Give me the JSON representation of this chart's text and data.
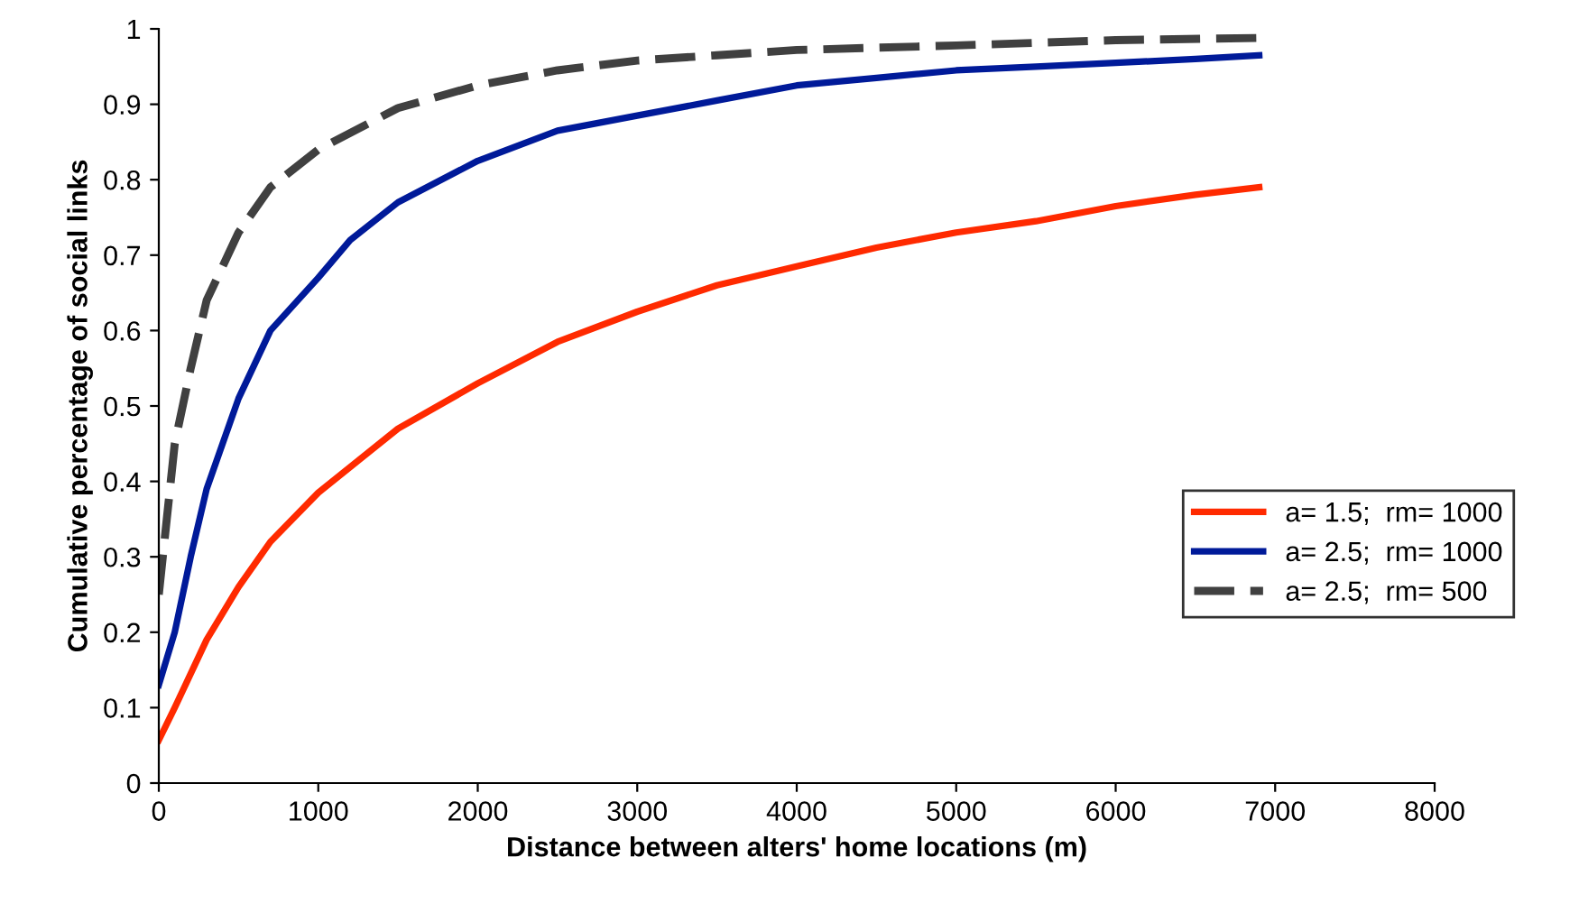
{
  "chart_data": {
    "type": "line",
    "xlabel": "Distance between alters' home locations (m)",
    "ylabel": "Cumulative percentage of social links",
    "xlim": [
      0,
      8000
    ],
    "xticks": [
      0,
      1000,
      2000,
      3000,
      4000,
      5000,
      6000,
      7000,
      8000
    ],
    "ylim": [
      0,
      1
    ],
    "yticks": [
      0,
      0.1,
      0.2,
      0.3,
      0.4,
      0.5,
      0.6,
      0.7,
      0.8,
      0.9,
      1
    ],
    "grid": false,
    "legend": "right",
    "marker": "none",
    "series": [
      {
        "name": "a= 1.5;  rm= 1000",
        "color": "#ff2a00",
        "line_style": "solid",
        "x": [
          0,
          100,
          300,
          500,
          700,
          1000,
          1500,
          2000,
          2500,
          3000,
          3500,
          4000,
          4500,
          5000,
          5500,
          6000,
          6500,
          6900
        ],
        "values": [
          0.057,
          0.1,
          0.19,
          0.26,
          0.32,
          0.385,
          0.47,
          0.53,
          0.585,
          0.625,
          0.66,
          0.685,
          0.71,
          0.73,
          0.745,
          0.765,
          0.78,
          0.79
        ]
      },
      {
        "name": "a= 2.5;  rm= 1000",
        "color": "#001a99",
        "line_style": "solid",
        "x": [
          0,
          100,
          200,
          300,
          500,
          700,
          1000,
          1200,
          1500,
          2000,
          2500,
          3000,
          3500,
          4000,
          4500,
          5000,
          5500,
          6000,
          6500,
          6900
        ],
        "values": [
          0.13,
          0.2,
          0.3,
          0.39,
          0.51,
          0.6,
          0.67,
          0.72,
          0.77,
          0.825,
          0.865,
          0.885,
          0.905,
          0.925,
          0.935,
          0.945,
          0.95,
          0.955,
          0.96,
          0.965
        ]
      },
      {
        "name": "a= 2.5;  rm= 500",
        "color": "#404040",
        "line_style": "dashed",
        "x": [
          0,
          50,
          100,
          200,
          300,
          500,
          700,
          1000,
          1500,
          2000,
          2500,
          3000,
          3500,
          4000,
          5000,
          6000,
          6900
        ],
        "values": [
          0.25,
          0.35,
          0.45,
          0.55,
          0.64,
          0.73,
          0.79,
          0.84,
          0.895,
          0.925,
          0.945,
          0.958,
          0.965,
          0.972,
          0.978,
          0.985,
          0.988
        ]
      }
    ]
  }
}
